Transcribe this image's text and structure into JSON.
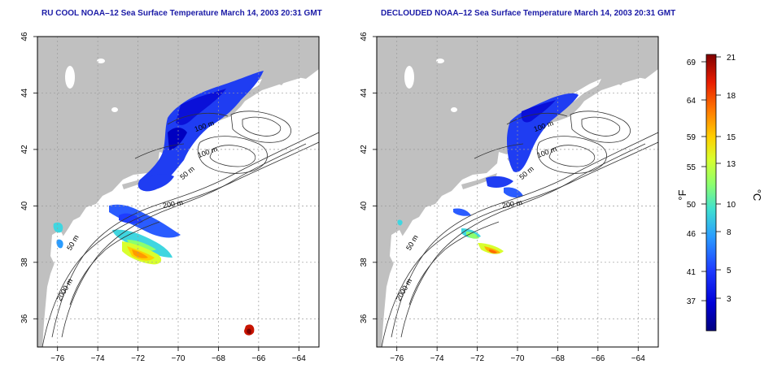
{
  "panels": [
    {
      "title": "RU COOL NOAA–12 Sea Surface Temperature March 14, 2003 20:31 GMT",
      "variant": "cloudy"
    },
    {
      "title": "DECLOUDED NOAA–12 Sea Surface Temperature March 14, 2003 20:31 GMT",
      "variant": "declouded"
    }
  ],
  "map": {
    "lon_range": [
      -77,
      -63
    ],
    "lat_range": [
      35,
      46
    ],
    "lon_ticks": [
      "−76",
      "−74",
      "−72",
      "−70",
      "−68",
      "−66",
      "−64"
    ],
    "lon_tick_values": [
      -76,
      -74,
      -72,
      -70,
      -68,
      -66,
      -64
    ],
    "lat_ticks": [
      "36",
      "38",
      "40",
      "42",
      "44",
      "46"
    ],
    "lat_tick_values": [
      36,
      38,
      40,
      42,
      44,
      46
    ],
    "grid": true,
    "land_color": "#c0c0c0",
    "ocean_color": "#ffffff",
    "contour_labels": [
      "100 m",
      "100 m",
      "50 m",
      "200 m",
      "50 m",
      "2000 m"
    ]
  },
  "colorbar": {
    "f_label": "°F",
    "c_label": "°C",
    "f_ticks": [
      "69",
      "64",
      "59",
      "55",
      "50",
      "46",
      "41",
      "37"
    ],
    "c_ticks": [
      "21",
      "18",
      "15",
      "13",
      "10",
      "8",
      "5",
      "3"
    ],
    "colors": [
      "#00007f",
      "#0000d8",
      "#1e3cff",
      "#2a9cff",
      "#3fe0d0",
      "#8cff6e",
      "#d8ff2e",
      "#ffd000",
      "#ff7800",
      "#e81c00",
      "#7f0000"
    ]
  }
}
